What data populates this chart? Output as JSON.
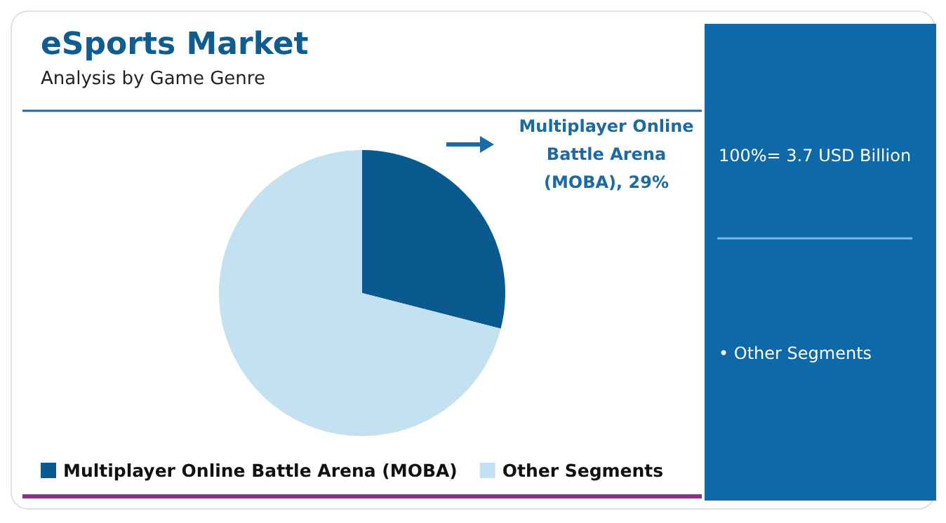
{
  "chart_data": {
    "type": "pie",
    "title": "eSports Market",
    "subtitle": "Analysis by Game Genre",
    "categories": [
      "Multiplayer Online Battle Arena (MOBA)",
      "Other Segments"
    ],
    "values": [
      29,
      71
    ],
    "colors": [
      "#0b5a8f",
      "#c4e1f1"
    ],
    "value_labels": [
      "Multiplayer Online Battle Arena (MOBA), 29%",
      null
    ],
    "legend": "bottom",
    "annotations": [
      "100%= 3.7 USD Billion",
      "• Other Segments"
    ]
  }
}
